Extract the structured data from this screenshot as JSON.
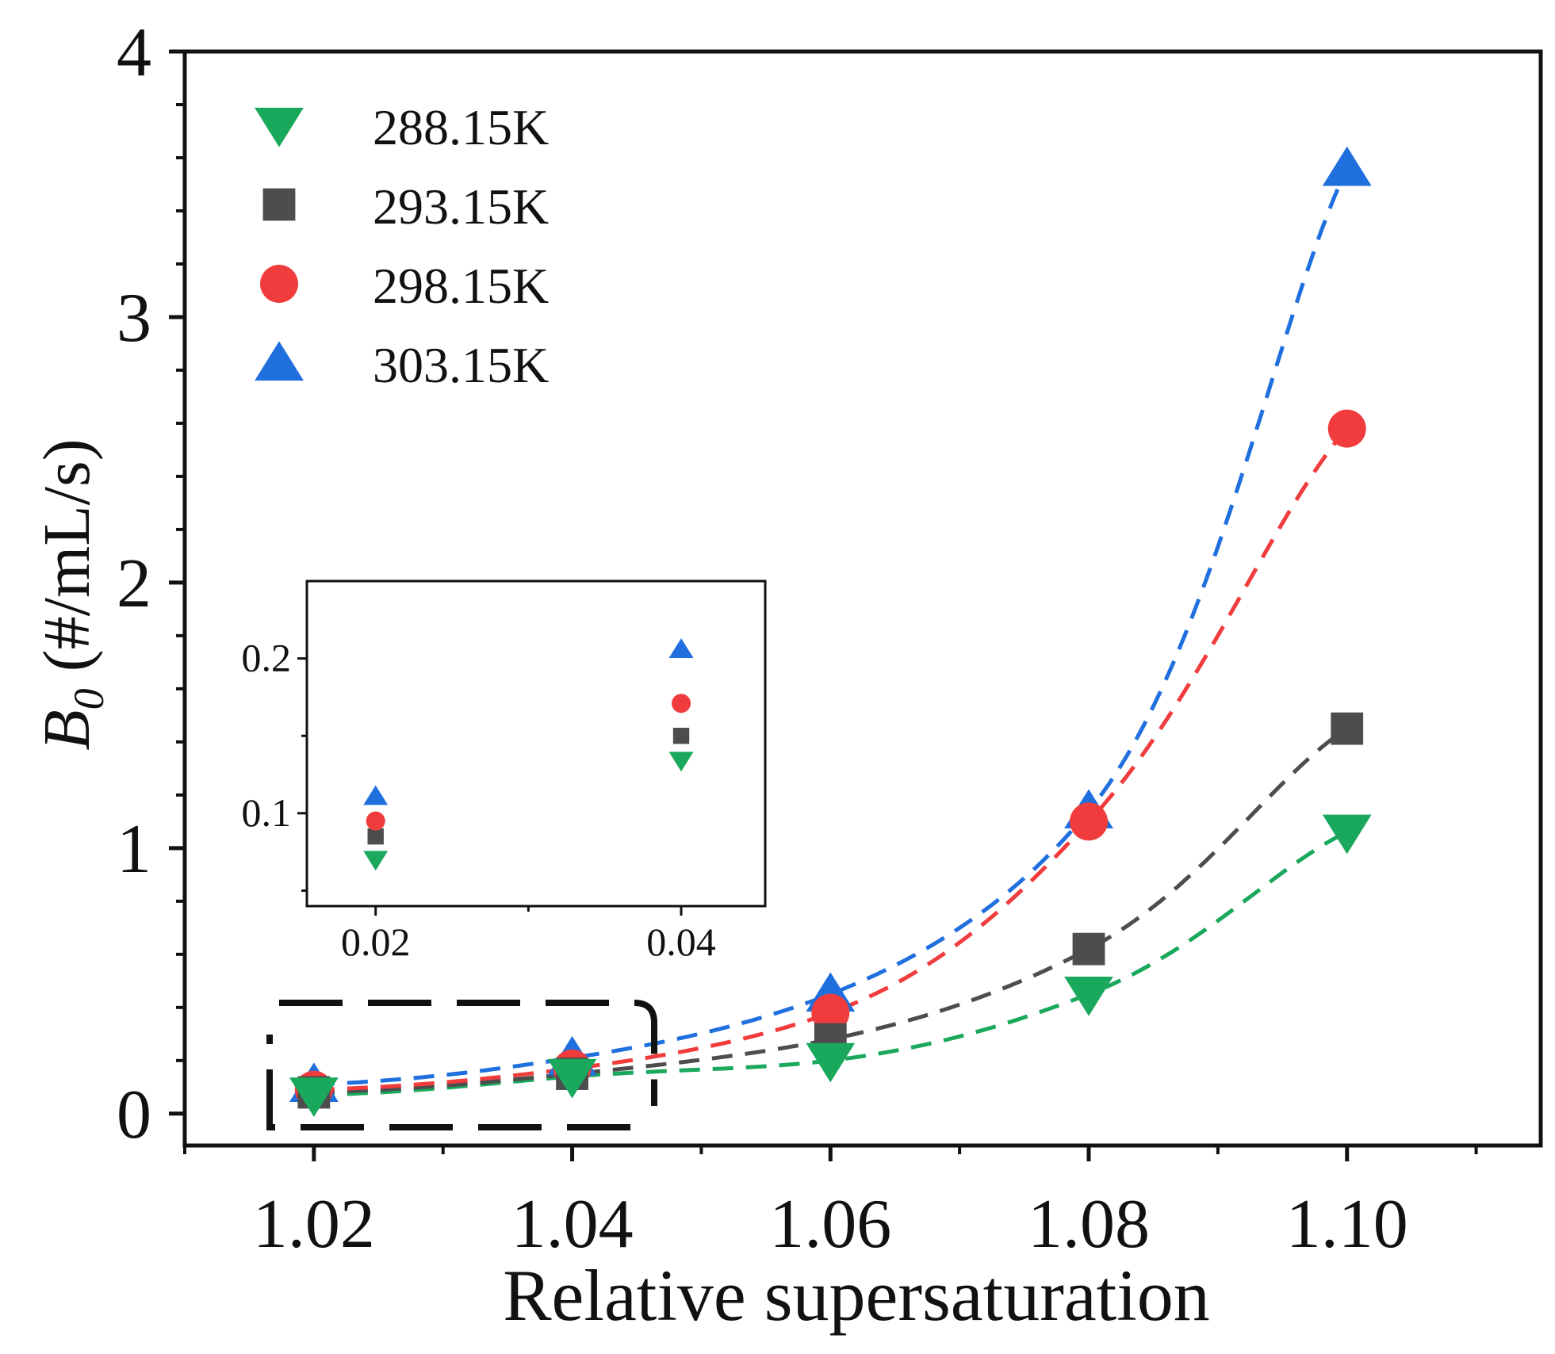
{
  "chart_data": [
    {
      "type": "line",
      "style": "scatter with dashed fitted curves",
      "title": "",
      "xlabel": "Relative supersaturation",
      "ylabel_symbol": "B",
      "ylabel_subscript": "0",
      "ylabel_units": " (#/mL/s)",
      "xlim": [
        1.01,
        1.115
      ],
      "ylim": [
        -0.12,
        4.0
      ],
      "x_ticks": [
        1.02,
        1.04,
        1.06,
        1.08,
        1.1
      ],
      "x_tick_labels": [
        "1.02",
        "1.04",
        "1.06",
        "1.08",
        "1.10"
      ],
      "y_ticks": [
        0,
        1,
        2,
        3,
        4
      ],
      "y_tick_labels": [
        "0",
        "1",
        "2",
        "3",
        "4"
      ],
      "x": [
        1.02,
        1.04,
        1.06,
        1.08,
        1.1
      ],
      "legend_position": "top-left",
      "series": [
        {
          "name": "288.15K",
          "marker": "triangle-down",
          "color": "#1aa85c",
          "values": [
            0.07,
            0.14,
            0.2,
            0.45,
            1.06
          ]
        },
        {
          "name": "293.15K",
          "marker": "square",
          "color": "#4d4d4d",
          "values": [
            0.08,
            0.15,
            0.28,
            0.62,
            1.45
          ]
        },
        {
          "name": "298.15K",
          "marker": "circle",
          "color": "#f03c3c",
          "values": [
            0.09,
            0.17,
            0.38,
            1.1,
            2.58
          ]
        },
        {
          "name": "303.15K",
          "marker": "triangle-up",
          "color": "#1f6fde",
          "values": [
            0.11,
            0.21,
            0.45,
            1.14,
            3.56
          ]
        }
      ],
      "highlight_box": "dashed rounded box around the 1.02–1.04 points"
    },
    {
      "type": "scatter",
      "role": "inset zoom of the boxed region",
      "x": [
        0.02,
        0.04
      ],
      "x_ticks": [
        0.02,
        0.04
      ],
      "x_tick_labels": [
        "0.02",
        "0.04"
      ],
      "y_ticks": [
        0.1,
        0.2
      ],
      "y_tick_labels": [
        "0.1",
        "0.2"
      ],
      "xlim": [
        0.0155,
        0.0455
      ],
      "ylim": [
        0.04,
        0.25
      ],
      "series": [
        {
          "name": "288.15K",
          "marker": "triangle-down",
          "color": "#1aa85c",
          "values": [
            0.07,
            0.134
          ]
        },
        {
          "name": "293.15K",
          "marker": "square",
          "color": "#4d4d4d",
          "values": [
            0.085,
            0.15
          ]
        },
        {
          "name": "298.15K",
          "marker": "circle",
          "color": "#f03c3c",
          "values": [
            0.095,
            0.171
          ]
        },
        {
          "name": "303.15K",
          "marker": "triangle-up",
          "color": "#1f6fde",
          "values": [
            0.111,
            0.206
          ]
        }
      ]
    }
  ]
}
